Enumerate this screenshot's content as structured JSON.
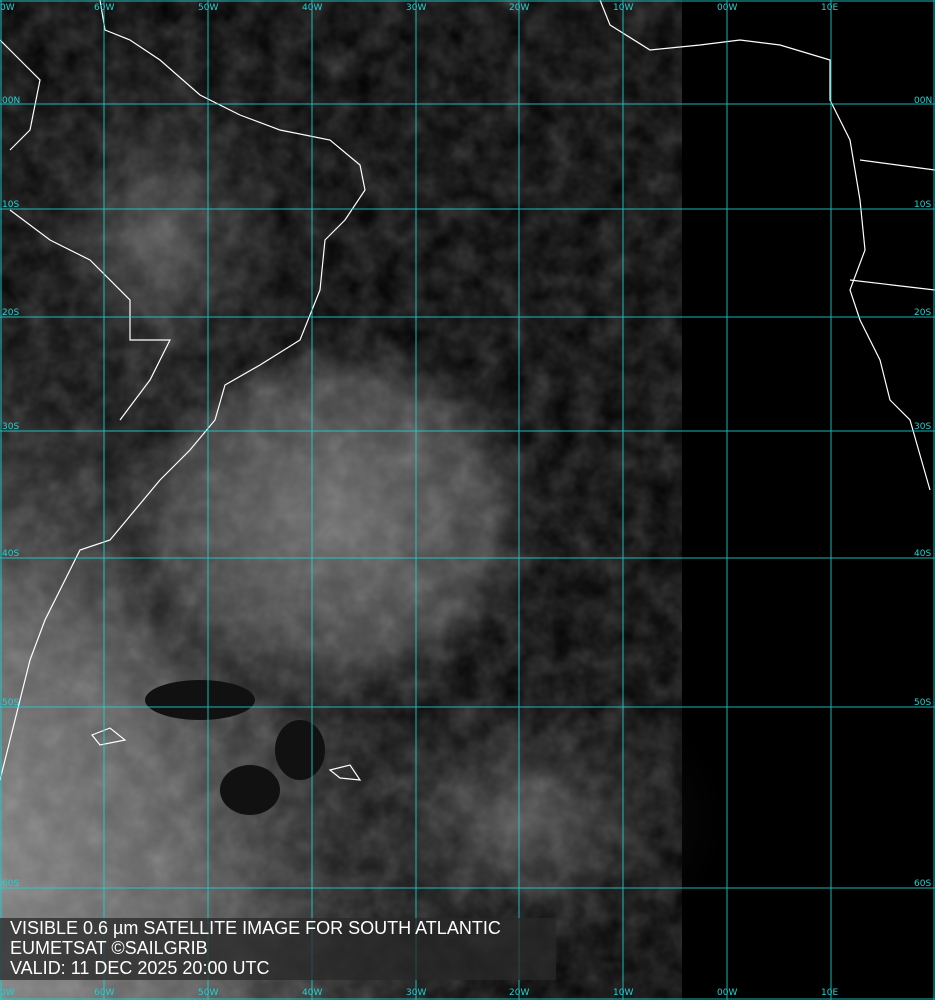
{
  "map": {
    "region": "South Atlantic",
    "grid_color": "#1fd3d3",
    "coastline_color": "#ffffff",
    "longitude_labels": [
      "0W",
      "60W",
      "50W",
      "40W",
      "30W",
      "20W",
      "10W",
      "00W",
      "10E"
    ],
    "latitude_labels": [
      "00N",
      "10S",
      "20S",
      "30S",
      "40S",
      "50S",
      "60S"
    ]
  },
  "caption": {
    "line1": "VISIBLE 0.6 µm SATELLITE IMAGE FOR SOUTH ATLANTIC",
    "line2": "EUMETSAT ©SAILGRIB",
    "line3": "VALID:  11 DEC 2025 20:00 UTC"
  }
}
